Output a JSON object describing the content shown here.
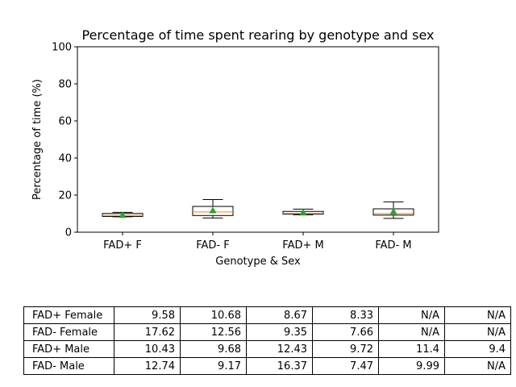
{
  "chart_data": {
    "type": "box",
    "title": "Percentage of time spent rearing by genotype and sex",
    "xlabel": "Genotype & Sex",
    "ylabel": "Percentage of time (%)",
    "ylim": [
      0,
      100
    ],
    "yticks": [
      "0",
      "20",
      "40",
      "60",
      "80",
      "100"
    ],
    "categories": [
      "FAD+ F",
      "FAD- F",
      "FAD+ M",
      "FAD- M"
    ],
    "boxes": [
      {
        "whisker_low": 8.33,
        "q1": 8.5,
        "median": 9.1,
        "q3": 10.1,
        "whisker_high": 10.68,
        "mean": 9.3
      },
      {
        "whisker_low": 7.66,
        "q1": 9.0,
        "median": 10.9,
        "q3": 13.9,
        "whisker_high": 17.62,
        "mean": 11.8
      },
      {
        "whisker_low": 9.4,
        "q1": 9.7,
        "median": 10.1,
        "q3": 11.2,
        "whisker_high": 12.43,
        "mean": 10.6
      },
      {
        "whisker_low": 7.47,
        "q1": 9.2,
        "median": 9.99,
        "q3": 12.6,
        "whisker_high": 16.37,
        "mean": 11.2
      }
    ],
    "grid": false,
    "colors": {
      "box": "#000000",
      "median": "#ff7f0e",
      "mean": "#2ca02c"
    }
  },
  "table": {
    "rows": [
      {
        "label": "FAD+ Female",
        "values": [
          "9.58",
          "10.68",
          "8.67",
          "8.33",
          "N/A",
          "N/A"
        ]
      },
      {
        "label": "FAD- Female",
        "values": [
          "17.62",
          "12.56",
          "9.35",
          "7.66",
          "N/A",
          "N/A"
        ]
      },
      {
        "label": "FAD+ Male",
        "values": [
          "10.43",
          "9.68",
          "12.43",
          "9.72",
          "11.4",
          "9.4"
        ]
      },
      {
        "label": "FAD- Male",
        "values": [
          "12.74",
          "9.17",
          "16.37",
          "7.47",
          "9.99",
          "N/A"
        ]
      }
    ]
  }
}
